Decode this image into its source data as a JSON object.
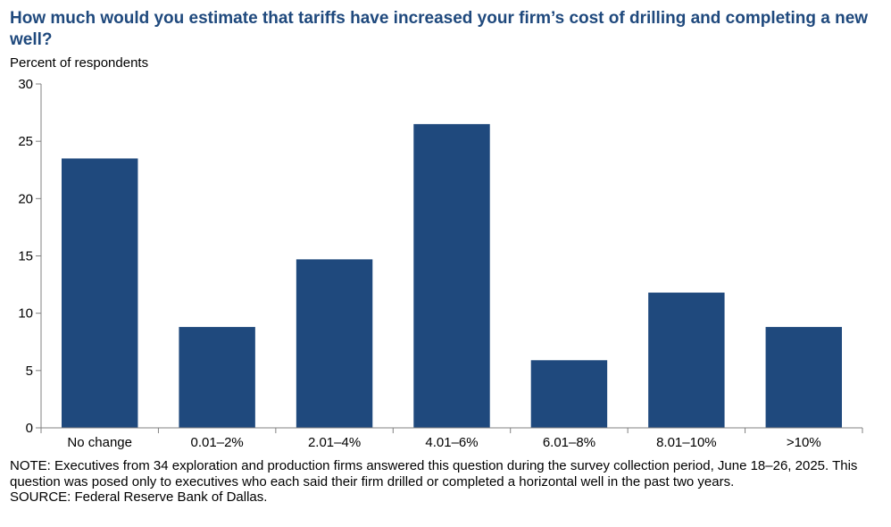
{
  "title": "How much would you estimate that tariffs have increased your firm’s cost of drilling and completing a new well?",
  "notes": {
    "note": "NOTE: Executives from 34 exploration and production firms answered this question during the survey collection period, June 18–26, 2025. This question was posed only to executives who each said their firm drilled or completed a horizontal well in the past two years.",
    "source": "SOURCE: Federal Reserve Bank of Dallas."
  },
  "colors": {
    "bar": "#1f497d",
    "title": "#1f497d",
    "axis": "#808080"
  },
  "chart_data": {
    "type": "bar",
    "title": "How much would you estimate that tariffs have increased your firm’s cost of drilling and completing a new well?",
    "xlabel": "",
    "ylabel": "Percent of respondents",
    "categories": [
      "No change",
      "0.01–2%",
      "2.01–4%",
      "4.01–6%",
      "6.01–8%",
      "8.01–10%",
      ">10%"
    ],
    "values": [
      23.5,
      8.8,
      14.7,
      26.5,
      5.9,
      11.8,
      8.8
    ],
    "ylim": [
      0,
      30
    ],
    "yticks": [
      0,
      5,
      10,
      15,
      20,
      25,
      30
    ],
    "grid": false,
    "legend": "none"
  }
}
